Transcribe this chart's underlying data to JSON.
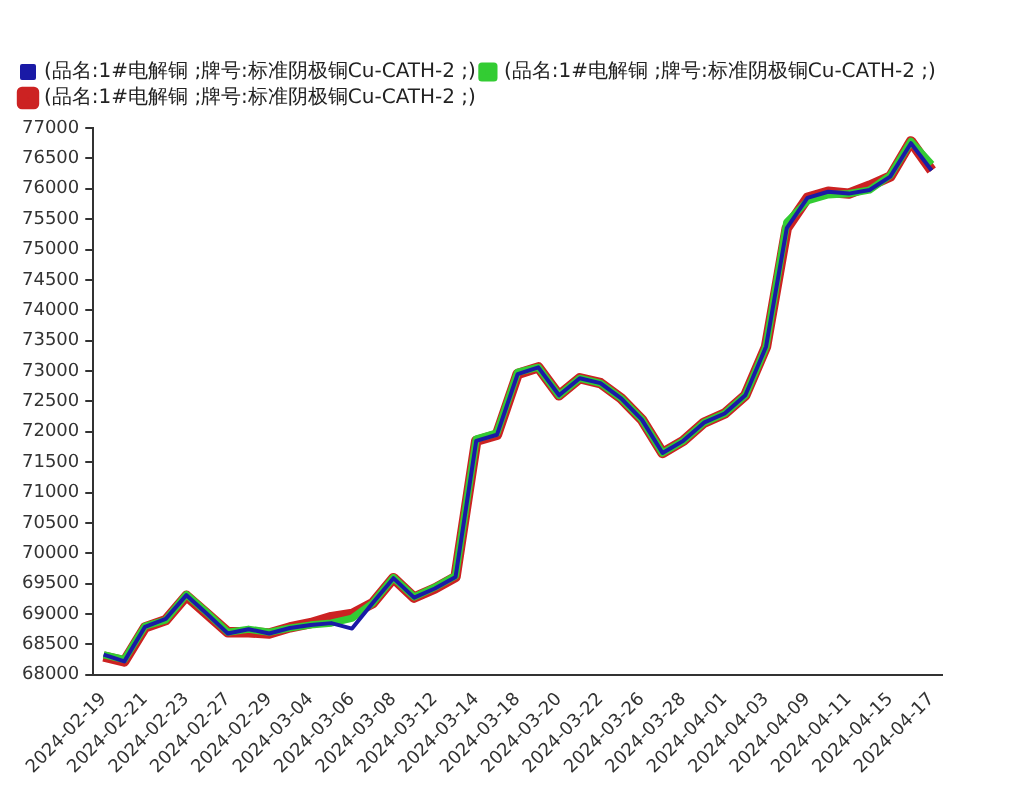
{
  "chart_data": {
    "type": "line",
    "categories": [
      "2024-02-19",
      null,
      "2024-02-21",
      null,
      "2024-02-23",
      null,
      "2024-02-27",
      null,
      "2024-02-29",
      null,
      "2024-03-04",
      null,
      "2024-03-06",
      null,
      "2024-03-08",
      null,
      "2024-03-12",
      null,
      "2024-03-14",
      null,
      "2024-03-18",
      null,
      "2024-03-20",
      null,
      "2024-03-22",
      null,
      "2024-03-26",
      null,
      "2024-03-28",
      null,
      "2024-04-01",
      null,
      "2024-04-03",
      null,
      "2024-04-09",
      null,
      "2024-04-11",
      null,
      "2024-04-15",
      null,
      "2024-04-17"
    ],
    "series": [
      {
        "name": "(品名:1#电解铜 ;牌号:标准阴极铜Cu-CATH-2 ;)",
        "color": "#cc2222",
        "values": [
          68300,
          68220,
          68780,
          68900,
          69300,
          69000,
          68700,
          68700,
          68680,
          68780,
          68850,
          68950,
          69000,
          69180,
          69590,
          69270,
          69420,
          69610,
          71850,
          71950,
          72950,
          73060,
          72600,
          72880,
          72800,
          72550,
          72200,
          71650,
          71850,
          72150,
          72300,
          72600,
          73400,
          75350,
          75850,
          75950,
          75920,
          76050,
          76200,
          76780,
          76300
        ]
      },
      {
        "name": "(品名:1#电解铜 ;牌号:标准阴极铜Cu-CATH-2 ;)",
        "color": "#33cc33",
        "values": [
          68330,
          68250,
          68800,
          68900,
          69320,
          69020,
          68700,
          68750,
          68700,
          68770,
          68820,
          68850,
          68930,
          69180,
          69600,
          69280,
          69440,
          69630,
          71880,
          71980,
          72980,
          73060,
          72600,
          72880,
          72800,
          72550,
          72200,
          71650,
          71850,
          72150,
          72300,
          72600,
          73400,
          75450,
          75800,
          75900,
          75920,
          75980,
          76220,
          76780,
          76400
        ]
      },
      {
        "name": "(品名:1#电解铜 ;牌号:标准阴极铜Cu-CATH-2 ;)",
        "color": "#1a1aa6",
        "values": [
          68330,
          68220,
          68790,
          68920,
          69310,
          69000,
          68680,
          68750,
          68680,
          68770,
          68820,
          68850,
          68760,
          69180,
          69590,
          69270,
          69420,
          69610,
          71850,
          71950,
          72950,
          73060,
          72600,
          72880,
          72800,
          72550,
          72200,
          71650,
          71850,
          72150,
          72300,
          72600,
          73400,
          75350,
          75850,
          75950,
          75920,
          75980,
          76200,
          76750,
          76300
        ]
      }
    ],
    "ylim": [
      68000,
      77000
    ],
    "yticks": [
      68000,
      68500,
      69000,
      69500,
      70000,
      70500,
      71000,
      71500,
      72000,
      72500,
      73000,
      73500,
      74000,
      74500,
      75000,
      75500,
      76000,
      76500,
      77000
    ],
    "grid": false,
    "legend": "top left",
    "marker": "none",
    "line_style": "solid"
  }
}
